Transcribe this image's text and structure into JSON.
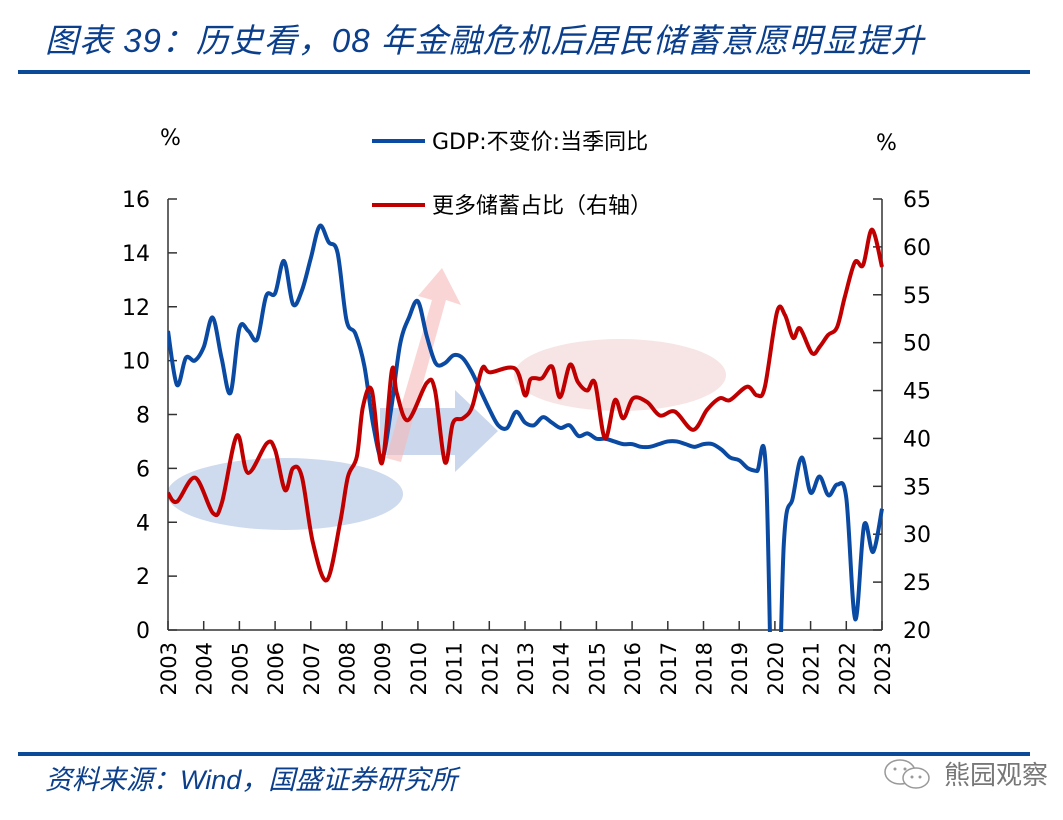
{
  "header": {
    "title": "图表 39：历史看，08 年金融危机后居民储蓄意愿明显提升"
  },
  "footer": {
    "source": "资料来源：Wind，国盛证券研究所",
    "watermark": "熊园观察"
  },
  "colors": {
    "gdp": "#0a4aa3",
    "savings": "#c00000",
    "rule": "#0b4a96",
    "ellipse_blue": "#c5d3ea",
    "ellipse_pink": "#f6dfdf",
    "arrow_pink": "#f7b9b9",
    "arrow_blue": "#a9bde0"
  },
  "chart_data": {
    "type": "line",
    "left_unit": "%",
    "right_unit": "%",
    "legend": [
      "GDP:不变价:当季同比",
      "更多储蓄占比（右轴）"
    ],
    "legend_position": "top-center",
    "grid": false,
    "x_ticks": [
      "2003",
      "2004",
      "2005",
      "2006",
      "2007",
      "2008",
      "2009",
      "2010",
      "2011",
      "2012",
      "2013",
      "2014",
      "2015",
      "2016",
      "2017",
      "2018",
      "2019",
      "2020",
      "2021",
      "2022",
      "2023"
    ],
    "xlim": [
      2003,
      2023
    ],
    "ylim_left": [
      0,
      16
    ],
    "y_ticks_left": [
      "0",
      "2",
      "4",
      "6",
      "8",
      "10",
      "12",
      "14",
      "16"
    ],
    "ylim_right": [
      20,
      65
    ],
    "y_ticks_right": [
      "20",
      "25",
      "30",
      "35",
      "40",
      "45",
      "50",
      "55",
      "60",
      "65"
    ],
    "series": [
      {
        "name": "GDP:不变价:当季同比",
        "axis": "left",
        "start_quarter": "2003Q1",
        "values": [
          11.1,
          9.1,
          10.1,
          10.0,
          10.5,
          11.6,
          10.1,
          8.8,
          11.2,
          11.1,
          10.8,
          12.4,
          12.5,
          13.7,
          12.1,
          12.6,
          13.8,
          15.0,
          14.4,
          14.0,
          11.5,
          11.0,
          9.8,
          7.6,
          6.4,
          8.2,
          10.6,
          11.6,
          12.2,
          10.9,
          9.9,
          9.9,
          10.2,
          10.1,
          9.6,
          8.9,
          8.2,
          7.6,
          7.5,
          8.1,
          7.7,
          7.6,
          7.9,
          7.7,
          7.5,
          7.6,
          7.2,
          7.3,
          7.1,
          7.1,
          7.0,
          6.9,
          6.9,
          6.8,
          6.8,
          6.9,
          7.0,
          7.0,
          6.9,
          6.8,
          6.9,
          6.9,
          6.7,
          6.4,
          6.3,
          6.0,
          5.9,
          5.9,
          -6.8,
          3.2,
          4.9,
          6.4,
          5.1,
          5.7,
          5.0,
          5.4,
          4.9,
          0.4,
          3.9,
          2.9,
          4.5
        ]
      },
      {
        "name": "更多储蓄占比（右轴）",
        "axis": "right",
        "points": [
          [
            2003.0,
            34.3
          ],
          [
            2003.25,
            33.4
          ],
          [
            2003.76,
            35.9
          ],
          [
            2004.26,
            32.2
          ],
          [
            2004.51,
            33.3
          ],
          [
            2004.93,
            40.3
          ],
          [
            2005.24,
            36.4
          ],
          [
            2005.77,
            39.5
          ],
          [
            2006.0,
            38.8
          ],
          [
            2006.28,
            34.6
          ],
          [
            2006.5,
            36.9
          ],
          [
            2006.75,
            36.0
          ],
          [
            2007.06,
            29.1
          ],
          [
            2007.45,
            25.2
          ],
          [
            2007.82,
            31.2
          ],
          [
            2008.04,
            36.0
          ],
          [
            2008.29,
            38.1
          ],
          [
            2008.46,
            43.3
          ],
          [
            2008.71,
            45.0
          ],
          [
            2008.99,
            37.4
          ],
          [
            2009.27,
            47.1
          ],
          [
            2009.41,
            44.7
          ],
          [
            2009.72,
            41.9
          ],
          [
            2010.25,
            45.8
          ],
          [
            2010.48,
            45.0
          ],
          [
            2010.76,
            37.5
          ],
          [
            2010.98,
            41.6
          ],
          [
            2011.26,
            42.1
          ],
          [
            2011.52,
            43.3
          ],
          [
            2011.8,
            47.3
          ],
          [
            2012.02,
            46.9
          ],
          [
            2012.72,
            47.3
          ],
          [
            2013.0,
            44.5
          ],
          [
            2013.14,
            46.1
          ],
          [
            2013.28,
            46.3
          ],
          [
            2013.48,
            46.3
          ],
          [
            2013.76,
            47.5
          ],
          [
            2013.98,
            44.3
          ],
          [
            2014.26,
            47.7
          ],
          [
            2014.48,
            45.9
          ],
          [
            2014.74,
            45.0
          ],
          [
            2014.96,
            45.8
          ],
          [
            2015.24,
            40.0
          ],
          [
            2015.52,
            44.0
          ],
          [
            2015.75,
            42.1
          ],
          [
            2016.03,
            44.2
          ],
          [
            2016.42,
            43.8
          ],
          [
            2016.78,
            42.4
          ],
          [
            2017.2,
            42.8
          ],
          [
            2017.71,
            40.9
          ],
          [
            2018.1,
            43.0
          ],
          [
            2018.46,
            44.2
          ],
          [
            2018.74,
            44.0
          ],
          [
            2019.22,
            45.4
          ],
          [
            2019.5,
            44.5
          ],
          [
            2019.72,
            45.4
          ],
          [
            2020.06,
            53.2
          ],
          [
            2020.28,
            52.9
          ],
          [
            2020.51,
            50.5
          ],
          [
            2020.7,
            51.5
          ],
          [
            2021.04,
            48.9
          ],
          [
            2021.26,
            49.6
          ],
          [
            2021.49,
            50.8
          ],
          [
            2021.74,
            51.6
          ],
          [
            2021.96,
            54.8
          ],
          [
            2022.24,
            58.4
          ],
          [
            2022.47,
            58.1
          ],
          [
            2022.72,
            61.8
          ],
          [
            2023.0,
            57.9
          ]
        ]
      }
    ]
  }
}
